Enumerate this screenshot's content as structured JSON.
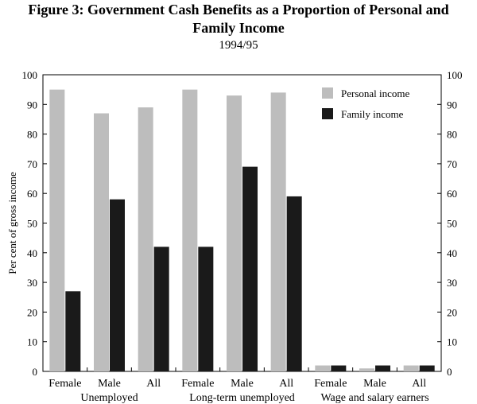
{
  "chart_data": {
    "type": "bar",
    "title_line1": "Figure 3: Government Cash Benefits as a Proportion of Personal and",
    "title_line2": "Family Income",
    "subtitle": "1994/95",
    "ylabel": "Per cent of gross income",
    "ylim": [
      0,
      100
    ],
    "yticks": [
      0,
      10,
      20,
      30,
      40,
      50,
      60,
      70,
      80,
      90,
      100
    ],
    "categories": [
      "Female",
      "Male",
      "All",
      "Female",
      "Male",
      "All",
      "Female",
      "Male",
      "All"
    ],
    "groups": [
      {
        "label": "Unemployed",
        "span": [
          0,
          2
        ]
      },
      {
        "label": "Long-term unemployed",
        "span": [
          3,
          5
        ]
      },
      {
        "label": "Wage and salary earners",
        "span": [
          6,
          8
        ]
      }
    ],
    "series": [
      {
        "name": "Personal income",
        "color": "#bdbdbd",
        "values": [
          95,
          87,
          89,
          95,
          93,
          94,
          2,
          1,
          2
        ]
      },
      {
        "name": "Family income",
        "color": "#1a1a1a",
        "values": [
          27,
          58,
          42,
          42,
          69,
          59,
          2,
          2,
          2
        ]
      }
    ],
    "legend_position": "top-right"
  }
}
